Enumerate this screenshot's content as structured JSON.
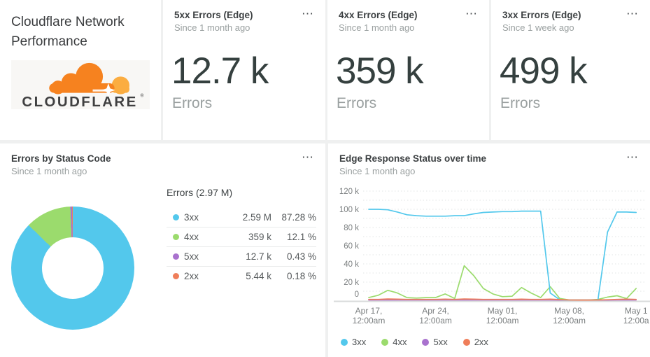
{
  "ui": {
    "more_icon": "⋯"
  },
  "title_card": {
    "title_line1": "Cloudflare Network",
    "title_line2": "Performance",
    "logo_text": "CLOUDFLARE"
  },
  "kpis": [
    {
      "title": "5xx Errors (Edge)",
      "subtitle": "Since 1 month ago",
      "value": "12.7 k",
      "label": "Errors"
    },
    {
      "title": "4xx Errors (Edge)",
      "subtitle": "Since 1 month ago",
      "value": "359 k",
      "label": "Errors"
    },
    {
      "title": "3xx Errors (Edge)",
      "subtitle": "Since 1 week ago",
      "value": "499 k",
      "label": "Errors"
    }
  ],
  "chart_data": [
    {
      "type": "pie",
      "donut": true,
      "title": "Errors by Status Code",
      "subtitle": "Since 1 month ago",
      "legend_title": "Errors (2.97 M)",
      "legend_position": "right",
      "slices": [
        {
          "label": "3xx",
          "value_text": "2.59 M",
          "percent": 87.28,
          "percent_text": "87.28 %",
          "color": "#53c8ec"
        },
        {
          "label": "4xx",
          "value_text": "359 k",
          "percent": 12.1,
          "percent_text": "12.1 %",
          "color": "#9bdb6d"
        },
        {
          "label": "5xx",
          "value_text": "12.7 k",
          "percent": 0.43,
          "percent_text": "0.43 %",
          "color": "#a972ce"
        },
        {
          "label": "2xx",
          "value_text": "5.44 k",
          "percent": 0.18,
          "percent_text": "0.18 %",
          "color": "#ef7e5a"
        }
      ]
    },
    {
      "type": "line",
      "title": "Edge Response Status over time",
      "subtitle": "Since 1 month ago",
      "xlabel": "",
      "ylabel": "",
      "ylim_k": [
        0,
        120
      ],
      "y_tick_step_k": 20,
      "minor_grid_step_k": 10,
      "grid": "dotted",
      "legend_position": "bottom",
      "y_tick_labels": [
        "0",
        "20 k",
        "40 k",
        "60 k",
        "80 k",
        "100 k",
        "120 k"
      ],
      "x_ticks": [
        {
          "day": 0,
          "line1": "Apr 17,",
          "line2": "12:00am"
        },
        {
          "day": 7,
          "line1": "Apr 24,",
          "line2": "12:00am"
        },
        {
          "day": 14,
          "line1": "May 01,",
          "line2": "12:00am"
        },
        {
          "day": 21,
          "line1": "May 08,",
          "line2": "12:00am"
        },
        {
          "day": 28,
          "line1": "May 1",
          "line2": "12:00a"
        }
      ],
      "series": [
        {
          "name": "3xx",
          "color": "#53c8ec",
          "values_k": [
            100,
            100,
            99.5,
            97,
            94,
            93,
            92.5,
            92.5,
            92.5,
            93,
            93,
            95,
            96.5,
            97,
            97.5,
            97.5,
            98,
            98,
            98,
            8,
            0.6,
            0.3,
            0.3,
            0.3,
            0.4,
            75,
            97,
            97,
            96.5
          ]
        },
        {
          "name": "4xx",
          "color": "#9bdb6d",
          "values_k": [
            3,
            5.5,
            11,
            8,
            3,
            2.5,
            3,
            3,
            7,
            2,
            38,
            27,
            13,
            7,
            4,
            4.5,
            14,
            8,
            3,
            15,
            2,
            0.4,
            0.3,
            0.3,
            1,
            3.5,
            5,
            2,
            13
          ]
        },
        {
          "name": "5xx",
          "color": "#a972ce",
          "values_k": [
            0.4,
            0.4,
            0.4,
            0.4,
            0.4,
            0.4,
            0.4,
            0.4,
            0.4,
            0.4,
            0.4,
            0.4,
            0.4,
            0.4,
            0.4,
            0.4,
            0.4,
            0.4,
            0.4,
            0.4,
            0.3,
            0.2,
            0.2,
            0.2,
            0.2,
            0.3,
            0.4,
            0.4,
            0.4
          ]
        },
        {
          "name": "2xx",
          "color": "#ef7e5a",
          "values_k": [
            1,
            1,
            1.5,
            1.2,
            1,
            1,
            1,
            1,
            1.2,
            1,
            1.5,
            1.2,
            1,
            1,
            1,
            1,
            1.2,
            1,
            1,
            1.2,
            0.8,
            0.4,
            0.3,
            0.3,
            0.4,
            0.6,
            1,
            1.3,
            1
          ]
        }
      ]
    }
  ]
}
